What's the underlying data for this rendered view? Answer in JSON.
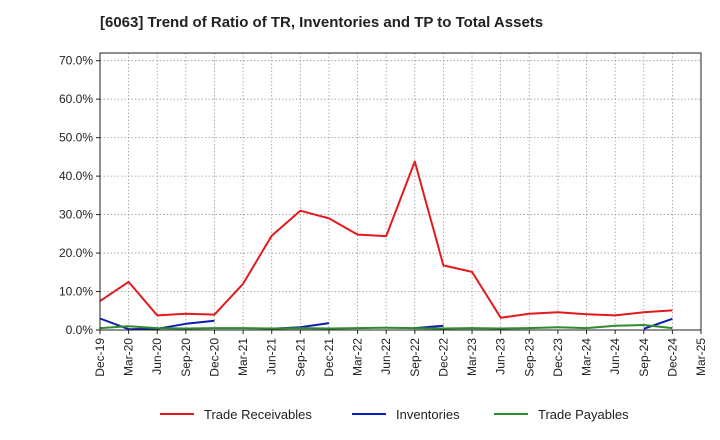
{
  "chart_data": {
    "type": "line",
    "title": "[6063]  Trend of Ratio of TR, Inventories and TP to Total Assets",
    "xlabel": "",
    "ylabel": "",
    "ylim": [
      0,
      72
    ],
    "y_ticks": [
      "0.0%",
      "10.0%",
      "20.0%",
      "30.0%",
      "40.0%",
      "50.0%",
      "60.0%",
      "70.0%"
    ],
    "y_tick_values": [
      0,
      10,
      20,
      30,
      40,
      50,
      60,
      70
    ],
    "x": [
      "Dec-19",
      "Mar-20",
      "Jun-20",
      "Sep-20",
      "Dec-20",
      "Mar-21",
      "Jun-21",
      "Sep-21",
      "Dec-21",
      "Mar-22",
      "Jun-22",
      "Sep-22",
      "Dec-22",
      "Mar-23",
      "Jun-23",
      "Sep-23",
      "Dec-23",
      "Mar-24",
      "Jun-24",
      "Sep-24",
      "Dec-24",
      "Mar-25"
    ],
    "grid": true,
    "legend_position": "bottom",
    "series": [
      {
        "name": "Trade Receivables",
        "color": "#e31a1c",
        "values": [
          7.5,
          12.5,
          3.8,
          4.2,
          4.0,
          12.0,
          24.5,
          31.0,
          29.0,
          24.8,
          24.4,
          43.8,
          16.8,
          15.1,
          3.2,
          4.2,
          4.6,
          4.1,
          3.8,
          4.6,
          5.1,
          null
        ]
      },
      {
        "name": "Inventories",
        "color": "#0a1eb4",
        "values": [
          3.0,
          0.2,
          0.3,
          1.6,
          2.4,
          null,
          0.3,
          0.7,
          1.8,
          null,
          null,
          0.5,
          1.1,
          null,
          null,
          null,
          null,
          null,
          null,
          0.3,
          2.9,
          null
        ]
      },
      {
        "name": "Trade Payables",
        "color": "#2e8b2e",
        "values": [
          0.5,
          1.0,
          0.5,
          0.4,
          0.5,
          0.5,
          0.4,
          0.5,
          0.4,
          0.5,
          0.6,
          0.5,
          0.4,
          0.5,
          0.4,
          0.5,
          0.7,
          0.5,
          1.1,
          1.3,
          0.5,
          null
        ]
      }
    ]
  }
}
